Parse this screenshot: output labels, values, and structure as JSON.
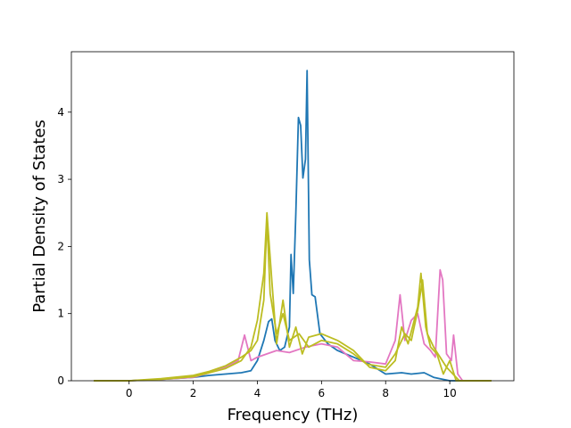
{
  "chart_data": {
    "type": "line",
    "title": "",
    "xlabel": "Frequency (THz)",
    "ylabel": "Partial Density of States",
    "xlim": [
      -1.8,
      12.0
    ],
    "ylim": [
      0,
      4.9
    ],
    "x_ticks": [
      0,
      2,
      4,
      6,
      8,
      10
    ],
    "y_ticks": [
      0,
      1,
      2,
      3,
      4
    ],
    "grid": false,
    "legend": "none",
    "series": [
      {
        "color": "#1f77b4",
        "points": [
          [
            -1.1,
            0
          ],
          [
            0,
            0
          ],
          [
            1,
            0.02
          ],
          [
            2,
            0.05
          ],
          [
            2.5,
            0.08
          ],
          [
            3,
            0.1
          ],
          [
            3.5,
            0.12
          ],
          [
            3.8,
            0.15
          ],
          [
            4.0,
            0.3
          ],
          [
            4.2,
            0.6
          ],
          [
            4.35,
            0.88
          ],
          [
            4.45,
            0.92
          ],
          [
            4.55,
            0.6
          ],
          [
            4.7,
            0.45
          ],
          [
            4.85,
            0.5
          ],
          [
            5.0,
            0.8
          ],
          [
            5.05,
            1.88
          ],
          [
            5.12,
            1.3
          ],
          [
            5.2,
            2.5
          ],
          [
            5.28,
            3.92
          ],
          [
            5.35,
            3.8
          ],
          [
            5.42,
            3.02
          ],
          [
            5.5,
            3.3
          ],
          [
            5.55,
            4.62
          ],
          [
            5.62,
            1.8
          ],
          [
            5.7,
            1.28
          ],
          [
            5.8,
            1.25
          ],
          [
            5.95,
            0.7
          ],
          [
            6.2,
            0.55
          ],
          [
            6.5,
            0.45
          ],
          [
            7.0,
            0.35
          ],
          [
            7.5,
            0.25
          ],
          [
            8.0,
            0.1
          ],
          [
            8.5,
            0.12
          ],
          [
            8.8,
            0.1
          ],
          [
            9.2,
            0.12
          ],
          [
            9.5,
            0.05
          ],
          [
            10.0,
            0
          ],
          [
            11.3,
            0
          ]
        ]
      },
      {
        "color": "#e377c2",
        "points": [
          [
            -1.1,
            0
          ],
          [
            0,
            0
          ],
          [
            1,
            0.02
          ],
          [
            2,
            0.05
          ],
          [
            2.5,
            0.12
          ],
          [
            3,
            0.2
          ],
          [
            3.4,
            0.3
          ],
          [
            3.6,
            0.68
          ],
          [
            3.8,
            0.3
          ],
          [
            4.0,
            0.35
          ],
          [
            4.3,
            0.4
          ],
          [
            4.6,
            0.45
          ],
          [
            5.0,
            0.42
          ],
          [
            5.5,
            0.5
          ],
          [
            6.0,
            0.55
          ],
          [
            6.5,
            0.5
          ],
          [
            7.0,
            0.3
          ],
          [
            7.5,
            0.28
          ],
          [
            8.0,
            0.25
          ],
          [
            8.3,
            0.6
          ],
          [
            8.45,
            1.28
          ],
          [
            8.6,
            0.6
          ],
          [
            8.8,
            0.9
          ],
          [
            9.0,
            1.0
          ],
          [
            9.2,
            0.55
          ],
          [
            9.4,
            0.45
          ],
          [
            9.55,
            0.35
          ],
          [
            9.7,
            1.65
          ],
          [
            9.78,
            1.5
          ],
          [
            9.9,
            0.4
          ],
          [
            10.05,
            0.3
          ],
          [
            10.12,
            0.68
          ],
          [
            10.25,
            0.1
          ],
          [
            10.4,
            0
          ],
          [
            11.3,
            0
          ]
        ]
      },
      {
        "color": "#bcbd22",
        "points": [
          [
            -1.1,
            0
          ],
          [
            0,
            0
          ],
          [
            1,
            0.02
          ],
          [
            2,
            0.06
          ],
          [
            2.5,
            0.12
          ],
          [
            3,
            0.18
          ],
          [
            3.5,
            0.3
          ],
          [
            3.8,
            0.5
          ],
          [
            4.0,
            0.9
          ],
          [
            4.2,
            1.6
          ],
          [
            4.3,
            2.5
          ],
          [
            4.45,
            1.5
          ],
          [
            4.6,
            0.55
          ],
          [
            4.8,
            1.2
          ],
          [
            5.0,
            0.5
          ],
          [
            5.2,
            0.8
          ],
          [
            5.4,
            0.4
          ],
          [
            5.6,
            0.65
          ],
          [
            6.0,
            0.7
          ],
          [
            6.5,
            0.6
          ],
          [
            7.0,
            0.45
          ],
          [
            7.3,
            0.3
          ],
          [
            7.5,
            0.2
          ],
          [
            8.0,
            0.15
          ],
          [
            8.3,
            0.3
          ],
          [
            8.5,
            0.8
          ],
          [
            8.7,
            0.55
          ],
          [
            9.0,
            1.1
          ],
          [
            9.1,
            1.6
          ],
          [
            9.25,
            0.8
          ],
          [
            9.4,
            0.5
          ],
          [
            9.6,
            0.4
          ],
          [
            9.8,
            0.1
          ],
          [
            10.0,
            0.3
          ],
          [
            10.2,
            0
          ],
          [
            11.3,
            0
          ]
        ]
      },
      {
        "color": "#bcbd22",
        "points": [
          [
            -1.1,
            0
          ],
          [
            0,
            0
          ],
          [
            1,
            0.03
          ],
          [
            2,
            0.08
          ],
          [
            2.5,
            0.14
          ],
          [
            3,
            0.22
          ],
          [
            3.5,
            0.35
          ],
          [
            3.8,
            0.45
          ],
          [
            4.0,
            0.6
          ],
          [
            4.2,
            1.2
          ],
          [
            4.3,
            2.4
          ],
          [
            4.4,
            1.3
          ],
          [
            4.6,
            0.7
          ],
          [
            4.8,
            1.0
          ],
          [
            5.0,
            0.6
          ],
          [
            5.3,
            0.7
          ],
          [
            5.6,
            0.5
          ],
          [
            6.0,
            0.6
          ],
          [
            6.5,
            0.55
          ],
          [
            7.0,
            0.4
          ],
          [
            7.4,
            0.25
          ],
          [
            8.0,
            0.2
          ],
          [
            8.3,
            0.4
          ],
          [
            8.6,
            0.7
          ],
          [
            8.8,
            0.6
          ],
          [
            9.0,
            1.05
          ],
          [
            9.15,
            1.5
          ],
          [
            9.3,
            0.7
          ],
          [
            9.5,
            0.5
          ],
          [
            9.7,
            0.35
          ],
          [
            9.9,
            0.2
          ],
          [
            10.1,
            0.1
          ],
          [
            10.3,
            0
          ],
          [
            11.3,
            0
          ]
        ]
      }
    ]
  }
}
